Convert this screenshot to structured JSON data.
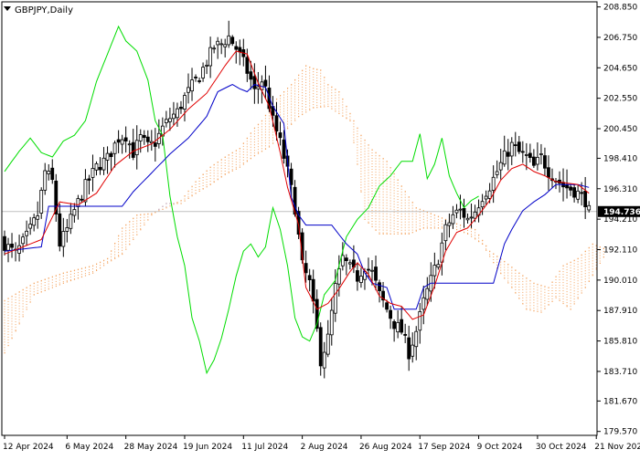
{
  "header": {
    "symbol_label": "GBPJPY,Daily"
  },
  "colors": {
    "background": "#ffffff",
    "frame": "#000000",
    "candle": "#000000",
    "tenkan": "#e00000",
    "kijun": "#0000c8",
    "chikou": "#00dd00",
    "cloud_up": "#f4a460",
    "cloud_down": "#c0a0b0",
    "price_line": "#c0c0c0",
    "price_label_bg": "#000000",
    "price_label_fg": "#ffffff"
  },
  "chart_data": {
    "type": "candlestick",
    "indicator": "Ichimoku",
    "current_price": 194.736,
    "current_price_label": "194.736",
    "y_min": 179.3,
    "y_max": 209.2,
    "y_ticks": [
      {
        "value": 208.85,
        "label": "208.850"
      },
      {
        "value": 206.75,
        "label": "206.750"
      },
      {
        "value": 204.65,
        "label": "204.650"
      },
      {
        "value": 202.55,
        "label": "202.550"
      },
      {
        "value": 200.45,
        "label": "200.450"
      },
      {
        "value": 198.41,
        "label": "198.410"
      },
      {
        "value": 196.31,
        "label": "196.310"
      },
      {
        "value": 194.21,
        "label": "194.210"
      },
      {
        "value": 192.11,
        "label": "192.110"
      },
      {
        "value": 190.01,
        "label": "190.010"
      },
      {
        "value": 187.91,
        "label": "187.910"
      },
      {
        "value": 185.81,
        "label": "185.810"
      },
      {
        "value": 183.71,
        "label": "183.710"
      },
      {
        "value": 181.67,
        "label": "181.670"
      },
      {
        "value": 179.57,
        "label": "179.570"
      }
    ],
    "x_labels": [
      {
        "bar": 0,
        "label": "12 Apr 2024"
      },
      {
        "bar": 17,
        "label": "6 May 2024"
      },
      {
        "bar": 33,
        "label": "28 May 2024"
      },
      {
        "bar": 49,
        "label": "19 Jun 2024"
      },
      {
        "bar": 65,
        "label": "11 Jul 2024"
      },
      {
        "bar": 81,
        "label": "2 Aug 2024"
      },
      {
        "bar": 97,
        "label": "26 Aug 2024"
      },
      {
        "bar": 113,
        "label": "17 Sep 2024"
      },
      {
        "bar": 129,
        "label": "9 Oct 2024"
      },
      {
        "bar": 145,
        "label": "30 Oct 2024"
      },
      {
        "bar": 161,
        "label": "21 Nov 2024"
      }
    ],
    "close_anchors": [
      [
        0,
        192.5
      ],
      [
        3,
        191.8
      ],
      [
        6,
        193.0
      ],
      [
        9,
        194.5
      ],
      [
        11,
        197.5
      ],
      [
        13,
        196.8
      ],
      [
        15,
        192.5
      ],
      [
        17,
        193.5
      ],
      [
        19,
        194.8
      ],
      [
        22,
        196.5
      ],
      [
        25,
        197.8
      ],
      [
        28,
        198.4
      ],
      [
        31,
        199.8
      ],
      [
        33,
        200.0
      ],
      [
        35,
        198.8
      ],
      [
        37,
        199.8
      ],
      [
        39,
        199.2
      ],
      [
        41,
        199.5
      ],
      [
        43,
        200.5
      ],
      [
        45,
        201.2
      ],
      [
        47,
        201.6
      ],
      [
        49,
        202.6
      ],
      [
        51,
        203.4
      ],
      [
        53,
        204.1
      ],
      [
        55,
        205.1
      ],
      [
        57,
        206.1
      ],
      [
        59,
        206.3
      ],
      [
        61,
        206.8
      ],
      [
        63,
        206.0
      ],
      [
        65,
        205.0
      ],
      [
        67,
        203.8
      ],
      [
        68,
        203.0
      ],
      [
        70,
        203.8
      ],
      [
        71,
        203.2
      ],
      [
        73,
        201.0
      ],
      [
        75,
        199.5
      ],
      [
        77,
        197.5
      ],
      [
        79,
        195.0
      ],
      [
        81,
        191.0
      ],
      [
        83,
        189.8
      ],
      [
        85,
        186.5
      ],
      [
        86,
        184.5
      ],
      [
        88,
        186.0
      ],
      [
        90,
        189.5
      ],
      [
        92,
        191.5
      ],
      [
        94,
        190.8
      ],
      [
        96,
        190.2
      ],
      [
        98,
        191.0
      ],
      [
        100,
        190.5
      ],
      [
        102,
        189.0
      ],
      [
        104,
        188.0
      ],
      [
        106,
        187.0
      ],
      [
        108,
        186.5
      ],
      [
        110,
        185.0
      ],
      [
        112,
        186.5
      ],
      [
        114,
        188.5
      ],
      [
        116,
        190.0
      ],
      [
        118,
        191.5
      ],
      [
        120,
        193.5
      ],
      [
        122,
        194.5
      ],
      [
        124,
        194.8
      ],
      [
        126,
        194.2
      ],
      [
        128,
        194.8
      ],
      [
        130,
        195.8
      ],
      [
        132,
        196.5
      ],
      [
        134,
        197.5
      ],
      [
        136,
        198.5
      ],
      [
        138,
        199.3
      ],
      [
        140,
        198.8
      ],
      [
        142,
        198.5
      ],
      [
        144,
        197.8
      ],
      [
        146,
        198.5
      ],
      [
        148,
        197.5
      ],
      [
        150,
        197.0
      ],
      [
        152,
        196.5
      ],
      [
        154,
        196.3
      ],
      [
        156,
        196.0
      ],
      [
        158,
        195.5
      ],
      [
        159,
        194.736
      ]
    ],
    "tenkan_anchors": [
      [
        0,
        191.8
      ],
      [
        10,
        192.8
      ],
      [
        15,
        195.4
      ],
      [
        20,
        195.2
      ],
      [
        25,
        196.0
      ],
      [
        30,
        197.9
      ],
      [
        35,
        198.9
      ],
      [
        40,
        199.4
      ],
      [
        45,
        200.4
      ],
      [
        50,
        201.8
      ],
      [
        55,
        202.9
      ],
      [
        60,
        204.8
      ],
      [
        63,
        205.8
      ],
      [
        66,
        205.6
      ],
      [
        69,
        203.6
      ],
      [
        72,
        202.0
      ],
      [
        75,
        198.8
      ],
      [
        77,
        196.4
      ],
      [
        80,
        193.8
      ],
      [
        82,
        189.5
      ],
      [
        85,
        188.0
      ],
      [
        88,
        188.4
      ],
      [
        91,
        189.4
      ],
      [
        94,
        190.6
      ],
      [
        96,
        191.2
      ],
      [
        99,
        190.4
      ],
      [
        102,
        188.9
      ],
      [
        105,
        188.4
      ],
      [
        108,
        188.2
      ],
      [
        111,
        187.3
      ],
      [
        114,
        187.6
      ],
      [
        117,
        189.6
      ],
      [
        120,
        192.0
      ],
      [
        123,
        193.3
      ],
      [
        126,
        193.6
      ],
      [
        129,
        194.5
      ],
      [
        132,
        195.5
      ],
      [
        135,
        196.9
      ],
      [
        138,
        197.7
      ],
      [
        141,
        198.0
      ],
      [
        144,
        197.5
      ],
      [
        147,
        197.2
      ],
      [
        150,
        196.8
      ],
      [
        153,
        196.7
      ],
      [
        156,
        196.6
      ],
      [
        159,
        196.0
      ]
    ],
    "kijun_anchors": [
      [
        0,
        192.0
      ],
      [
        10,
        192.3
      ],
      [
        12,
        195.1
      ],
      [
        32,
        195.1
      ],
      [
        35,
        196.1
      ],
      [
        40,
        197.4
      ],
      [
        45,
        198.7
      ],
      [
        50,
        199.8
      ],
      [
        55,
        201.3
      ],
      [
        58,
        203.0
      ],
      [
        62,
        203.5
      ],
      [
        64,
        203.2
      ],
      [
        66,
        203.0
      ],
      [
        68,
        203.5
      ],
      [
        71,
        203.3
      ],
      [
        73,
        202.0
      ],
      [
        76,
        200.8
      ],
      [
        78,
        195.7
      ],
      [
        80,
        194.5
      ],
      [
        82,
        193.8
      ],
      [
        89,
        193.8
      ],
      [
        93,
        192.5
      ],
      [
        96,
        191.8
      ],
      [
        98,
        190.5
      ],
      [
        100,
        189.8
      ],
      [
        104,
        189.5
      ],
      [
        106,
        188.0
      ],
      [
        112,
        188.0
      ],
      [
        114,
        189.5
      ],
      [
        116,
        189.8
      ],
      [
        119,
        189.8
      ],
      [
        124,
        189.8
      ],
      [
        133,
        189.8
      ],
      [
        136,
        192.5
      ],
      [
        138,
        193.5
      ],
      [
        141,
        194.8
      ],
      [
        144,
        195.4
      ],
      [
        147,
        195.9
      ],
      [
        150,
        196.6
      ],
      [
        153,
        196.6
      ],
      [
        156,
        196.6
      ],
      [
        159,
        196.4
      ]
    ],
    "chikou_anchors": [
      [
        0,
        197.5
      ],
      [
        4,
        198.9
      ],
      [
        7,
        199.8
      ],
      [
        10,
        198.8
      ],
      [
        13,
        198.5
      ],
      [
        16,
        199.6
      ],
      [
        19,
        200.0
      ],
      [
        22,
        201.0
      ],
      [
        25,
        203.7
      ],
      [
        28,
        205.6
      ],
      [
        31,
        207.5
      ],
      [
        33,
        206.5
      ],
      [
        36,
        205.8
      ],
      [
        39,
        203.8
      ],
      [
        41,
        201.0
      ],
      [
        43,
        200.0
      ],
      [
        45,
        195.8
      ],
      [
        47,
        193.0
      ],
      [
        49,
        191.0
      ],
      [
        51,
        187.4
      ],
      [
        53,
        185.8
      ],
      [
        55,
        183.6
      ],
      [
        57,
        184.5
      ],
      [
        59,
        186.0
      ],
      [
        61,
        188.0
      ],
      [
        63,
        190.3
      ],
      [
        65,
        192.0
      ],
      [
        67,
        192.5
      ],
      [
        69,
        191.6
      ],
      [
        71,
        192.3
      ],
      [
        73,
        195.0
      ],
      [
        75,
        193.5
      ],
      [
        77,
        191.0
      ],
      [
        79,
        187.4
      ],
      [
        81,
        186.1
      ],
      [
        83,
        185.8
      ],
      [
        85,
        187.0
      ],
      [
        87,
        189.0
      ],
      [
        90,
        190.0
      ],
      [
        93,
        193.0
      ],
      [
        96,
        194.2
      ],
      [
        99,
        195.0
      ],
      [
        102,
        196.5
      ],
      [
        105,
        197.2
      ],
      [
        108,
        198.2
      ],
      [
        111,
        198.2
      ],
      [
        113,
        200.1
      ],
      [
        115,
        197.0
      ],
      [
        117,
        198.0
      ],
      [
        119,
        199.8
      ],
      [
        121,
        197.2
      ],
      [
        123,
        196.0
      ],
      [
        125,
        195.0
      ],
      [
        127,
        195.5
      ],
      [
        129,
        195.8
      ]
    ],
    "span_a_anchors": [
      [
        0,
        188.6
      ],
      [
        8,
        189.8
      ],
      [
        16,
        190.5
      ],
      [
        24,
        191.0
      ],
      [
        28,
        191.5
      ],
      [
        32,
        193.6
      ],
      [
        36,
        194.5
      ],
      [
        40,
        194.6
      ],
      [
        44,
        195.0
      ],
      [
        48,
        195.5
      ],
      [
        52,
        196.8
      ],
      [
        56,
        197.8
      ],
      [
        60,
        198.5
      ],
      [
        64,
        199.1
      ],
      [
        68,
        200.5
      ],
      [
        70,
        201.0
      ],
      [
        74,
        202.5
      ],
      [
        78,
        203.5
      ],
      [
        82,
        204.8
      ],
      [
        84,
        204.6
      ],
      [
        86,
        204.5
      ],
      [
        88,
        203.5
      ],
      [
        91,
        203.0
      ],
      [
        94,
        201.5
      ],
      [
        97,
        200.0
      ],
      [
        100,
        199.0
      ],
      [
        104,
        198.2
      ],
      [
        108,
        196.5
      ],
      [
        112,
        195.0
      ],
      [
        116,
        194.6
      ],
      [
        120,
        194.2
      ],
      [
        124,
        193.8
      ],
      [
        128,
        193.5
      ],
      [
        132,
        192.0
      ],
      [
        136,
        191.3
      ],
      [
        140,
        190.5
      ],
      [
        144,
        189.8
      ],
      [
        148,
        189.5
      ],
      [
        152,
        191.0
      ],
      [
        156,
        191.5
      ],
      [
        160,
        192.5
      ],
      [
        163,
        192.2
      ]
    ],
    "span_b_anchors": [
      [
        0,
        185.0
      ],
      [
        8,
        189.0
      ],
      [
        16,
        189.8
      ],
      [
        24,
        190.5
      ],
      [
        28,
        191.2
      ],
      [
        32,
        191.8
      ],
      [
        40,
        194.5
      ],
      [
        44,
        195.3
      ],
      [
        48,
        195.3
      ],
      [
        52,
        196.0
      ],
      [
        56,
        196.6
      ],
      [
        60,
        197.3
      ],
      [
        64,
        197.8
      ],
      [
        68,
        198.6
      ],
      [
        72,
        199.2
      ],
      [
        76,
        200.2
      ],
      [
        80,
        201.3
      ],
      [
        84,
        201.9
      ],
      [
        88,
        202.0
      ],
      [
        91,
        201.5
      ],
      [
        94,
        201.0
      ],
      [
        96,
        198.0
      ],
      [
        98,
        194.2
      ],
      [
        102,
        193.2
      ],
      [
        106,
        193.2
      ],
      [
        110,
        193.2
      ],
      [
        114,
        193.6
      ],
      [
        118,
        193.6
      ],
      [
        122,
        193.6
      ],
      [
        126,
        193.2
      ],
      [
        130,
        192.5
      ],
      [
        134,
        190.8
      ],
      [
        138,
        189.5
      ],
      [
        142,
        188.0
      ],
      [
        146,
        187.8
      ],
      [
        150,
        188.8
      ],
      [
        154,
        188.0
      ],
      [
        158,
        189.5
      ],
      [
        163,
        191.6
      ]
    ]
  }
}
